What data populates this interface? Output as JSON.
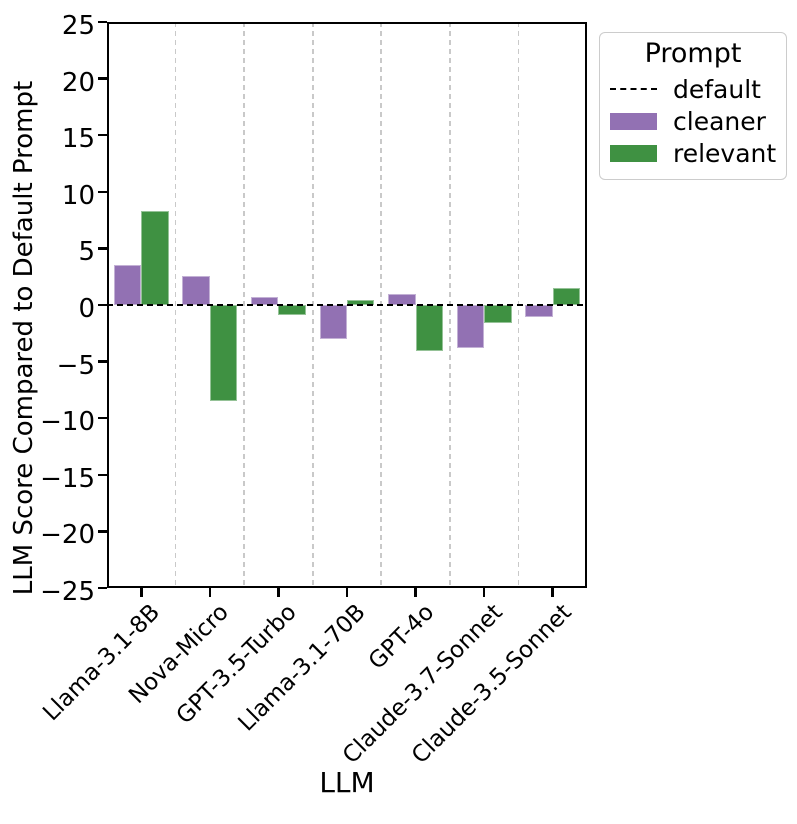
{
  "figure": {
    "xlabel": "LLM",
    "ylabel": "LLM Score Compared to Default Prompt"
  },
  "legend": {
    "title": "Prompt",
    "entries": [
      {
        "label": "default",
        "type": "dashed-line",
        "color": "#000000"
      },
      {
        "label": "cleaner",
        "type": "swatch",
        "color": "#9271b3"
      },
      {
        "label": "relevant",
        "type": "swatch",
        "color": "#3f9142"
      }
    ]
  },
  "chart_data": {
    "type": "bar",
    "title": "",
    "xlabel": "LLM",
    "ylabel": "LLM Score Compared to Default Prompt",
    "categories": [
      "Llama-3.1-8B",
      "Nova-Micro",
      "GPT-3.5-Turbo",
      "Llama-3.1-70B",
      "GPT-4o",
      "Claude-3.7-Sonnet",
      "Claude-3.5-Sonnet"
    ],
    "series": [
      {
        "name": "cleaner",
        "color": "#9271b3",
        "values": [
          3.5,
          2.6,
          0.7,
          -3.0,
          1.0,
          -3.8,
          -1.1
        ]
      },
      {
        "name": "relevant",
        "color": "#3f9142",
        "values": [
          8.3,
          -8.5,
          -0.9,
          0.4,
          -4.1,
          -1.6,
          1.5
        ]
      }
    ],
    "reference_line": {
      "name": "default",
      "y": 0,
      "style": "dashed",
      "color": "#000000"
    },
    "ylim": [
      -25,
      25
    ],
    "yticks": [
      25,
      20,
      15,
      10,
      5,
      0,
      -5,
      -10,
      -15,
      -20,
      -25
    ],
    "grid": "vertical-dashed-between-categories",
    "grid_color": "#c9c9c9",
    "legend_position": "upper-right-outside",
    "bar_width_fraction": 0.4
  }
}
